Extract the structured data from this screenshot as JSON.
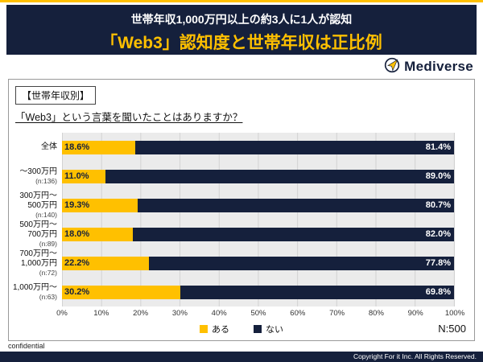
{
  "header": {
    "line1": "世帯年収1,000万円以上の約3人に1人が認知",
    "line2": "「Web3」認知度と世帯年収は正比例"
  },
  "logo": {
    "text": "Mediverse"
  },
  "chart": {
    "section_label": "【世帯年収別】",
    "question": "「Web3」という言葉を聞いたことはありますか？",
    "n_label": "N:500"
  },
  "chart_data": {
    "type": "bar",
    "orientation": "horizontal-stacked",
    "title": "「Web3」という言葉を聞いたことはありますか？",
    "categories": [
      "全体",
      "～300万円\n(n:136)",
      "300万円～\n500万円\n(n:140)",
      "500万円～\n700万円\n(n:89)",
      "700万円～\n1,000万円\n(n:72)",
      "1,000万円～\n(n:63)"
    ],
    "series": [
      {
        "name": "ある",
        "color": "#FFC000",
        "values": [
          18.6,
          11.0,
          19.3,
          18.0,
          22.2,
          30.2
        ]
      },
      {
        "name": "ない",
        "color": "#15203C",
        "values": [
          81.4,
          89.0,
          80.7,
          82.0,
          77.8,
          69.8
        ]
      }
    ],
    "xlim": [
      0,
      100
    ],
    "x_ticks": [
      "0%",
      "10%",
      "20%",
      "30%",
      "40%",
      "50%",
      "60%",
      "70%",
      "80%",
      "90%",
      "100%"
    ],
    "legend_position": "bottom",
    "grid": true,
    "plot_background": "#ebebeb",
    "total_n": "N:500"
  },
  "footer": {
    "confidential": "confidential",
    "copyright": "Copyright For it Inc. All Rights Reserved."
  }
}
